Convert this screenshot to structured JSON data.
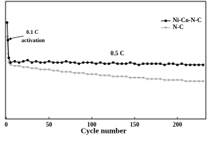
{
  "chart_data": {
    "type": "line",
    "x_label": "Cycle number",
    "annotations": [
      "0.1 C",
      "activation",
      "0.5 C"
    ],
    "x": [
      1,
      2,
      3,
      5,
      10,
      15,
      20,
      25,
      30,
      35,
      40,
      45,
      50,
      55,
      60,
      65,
      70,
      75,
      80,
      85,
      90,
      95,
      100,
      105,
      110,
      115,
      120,
      125,
      130,
      135,
      140,
      145,
      150,
      155,
      160,
      165,
      170,
      175,
      180,
      185,
      190,
      195,
      200,
      205,
      210,
      215,
      220,
      225,
      230
    ],
    "series": [
      {
        "name": "Ni-Co-N-C",
        "color": "#000000",
        "marker": "circle",
        "values": [
          82,
          67,
          52,
          48,
          49,
          48,
          49,
          50,
          48,
          49,
          48,
          48,
          49,
          48,
          48,
          48,
          49,
          48,
          48,
          47,
          48,
          48,
          48,
          47,
          48,
          47,
          47,
          48,
          47,
          47,
          47,
          48,
          47,
          46,
          47,
          47,
          47,
          47,
          47,
          46,
          47,
          47,
          46,
          47,
          46,
          46,
          46,
          46,
          46
        ]
      },
      {
        "name": "N-C",
        "color": "#a9a9a9",
        "marker": "triangle",
        "values": [
          70,
          55,
          48,
          46,
          45,
          45,
          44,
          44,
          43,
          43,
          42,
          42,
          42,
          41,
          41,
          40,
          40,
          40,
          39,
          39,
          39,
          38,
          38,
          38,
          37,
          37,
          37,
          36,
          36,
          36,
          36,
          35,
          35,
          35,
          35,
          34,
          34,
          34,
          34,
          33,
          33,
          33,
          33,
          33,
          32,
          32,
          32,
          32,
          32
        ]
      }
    ],
    "xlim": [
      0,
      234
    ],
    "xticks": [
      0,
      50,
      100,
      150,
      200
    ],
    "ylim": [
      0,
      100
    ],
    "legend": "upper right"
  }
}
